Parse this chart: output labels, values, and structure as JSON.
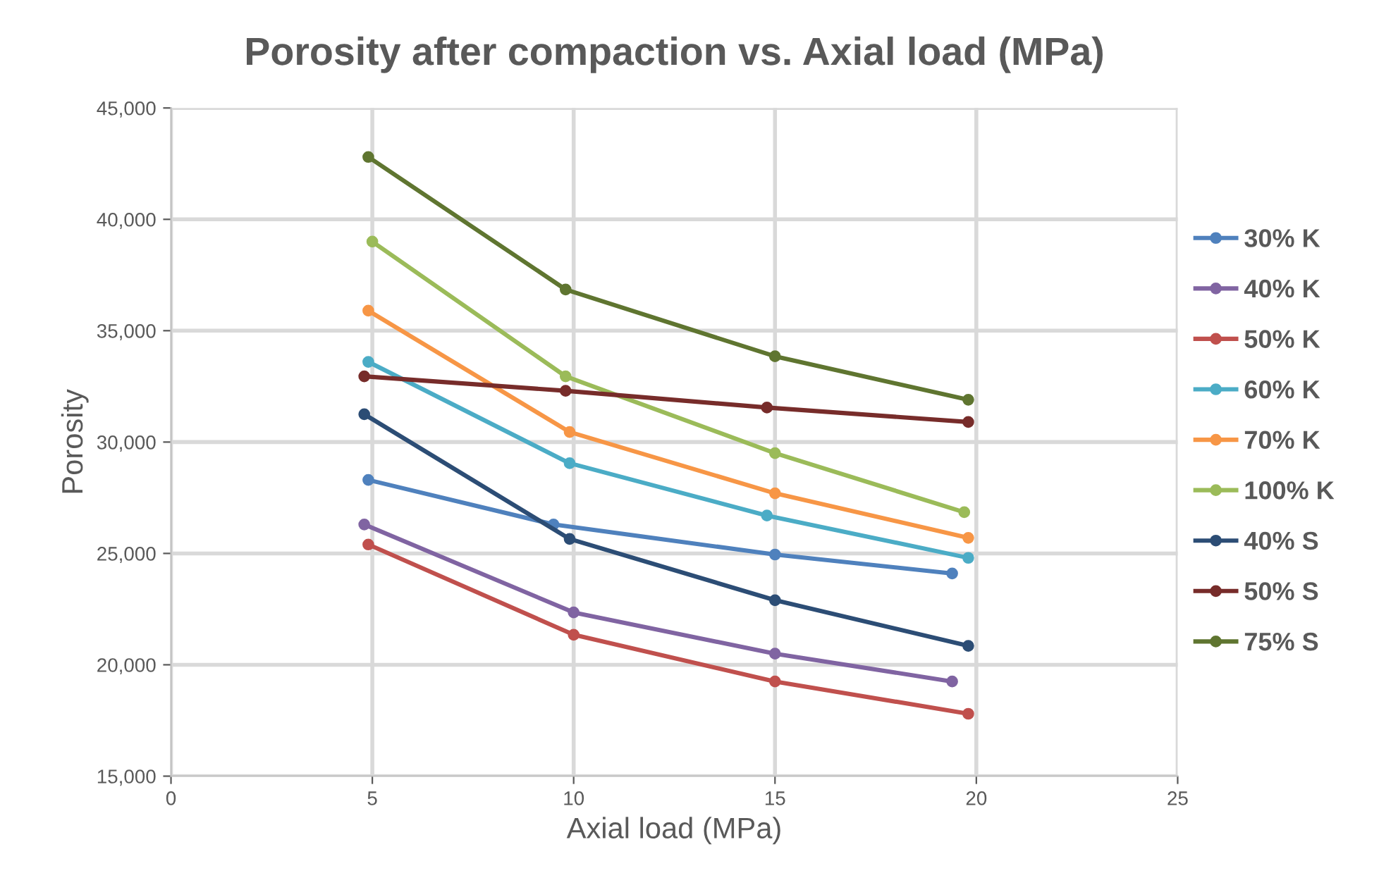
{
  "chart_data": {
    "type": "line",
    "title": "Porosity after compaction vs. Axial load (MPa)",
    "xlabel": "Axial load (MPa)",
    "ylabel": "Porosity",
    "xlim": [
      0,
      25
    ],
    "xticks": [
      0,
      5,
      10,
      15,
      20,
      25
    ],
    "ylim": [
      15000,
      45000
    ],
    "yticks": [
      {
        "value": 15000,
        "label": "15,000"
      },
      {
        "value": 20000,
        "label": "20,000"
      },
      {
        "value": 25000,
        "label": "25,000"
      },
      {
        "value": 30000,
        "label": "30,000"
      },
      {
        "value": 35000,
        "label": "35,000"
      },
      {
        "value": 40000,
        "label": "40,000"
      },
      {
        "value": 45000,
        "label": "45,000"
      }
    ],
    "grid": true,
    "legend": "right",
    "marker": "circle",
    "line_style": "solid",
    "series": [
      {
        "name": "30% K",
        "color": "#4f81bd",
        "x": [
          4.9,
          9.5,
          15,
          19.4
        ],
        "values": [
          28300,
          26300,
          24950,
          24100
        ]
      },
      {
        "name": "40% K",
        "color": "#8064a2",
        "x": [
          4.8,
          10,
          15,
          19.4
        ],
        "values": [
          26300,
          22350,
          20500,
          19250
        ]
      },
      {
        "name": "50% K",
        "color": "#c0504d",
        "x": [
          4.9,
          10,
          15,
          19.8
        ],
        "values": [
          25400,
          21350,
          19250,
          17800
        ]
      },
      {
        "name": "60% K",
        "color": "#4bacc6",
        "x": [
          4.9,
          9.9,
          14.8,
          19.8
        ],
        "values": [
          33600,
          29050,
          26700,
          24800
        ]
      },
      {
        "name": "70% K",
        "color": "#f79646",
        "x": [
          4.9,
          9.9,
          15,
          19.8
        ],
        "values": [
          35900,
          30450,
          27700,
          25700
        ]
      },
      {
        "name": "100% K",
        "color": "#9bbb59",
        "x": [
          5,
          9.8,
          15,
          19.7
        ],
        "values": [
          39000,
          32950,
          29500,
          26850
        ]
      },
      {
        "name": "40% S",
        "color": "#2c4d75",
        "x": [
          4.8,
          9.9,
          15,
          19.8
        ],
        "values": [
          31250,
          25650,
          22900,
          20850
        ]
      },
      {
        "name": "50% S",
        "color": "#772c2a",
        "x": [
          4.8,
          9.8,
          14.8,
          19.8
        ],
        "values": [
          32950,
          32300,
          31550,
          30900
        ]
      },
      {
        "name": "75% S",
        "color": "#5f7530",
        "x": [
          4.9,
          9.8,
          15,
          19.8
        ],
        "values": [
          42800,
          36850,
          33850,
          31900
        ]
      }
    ]
  }
}
